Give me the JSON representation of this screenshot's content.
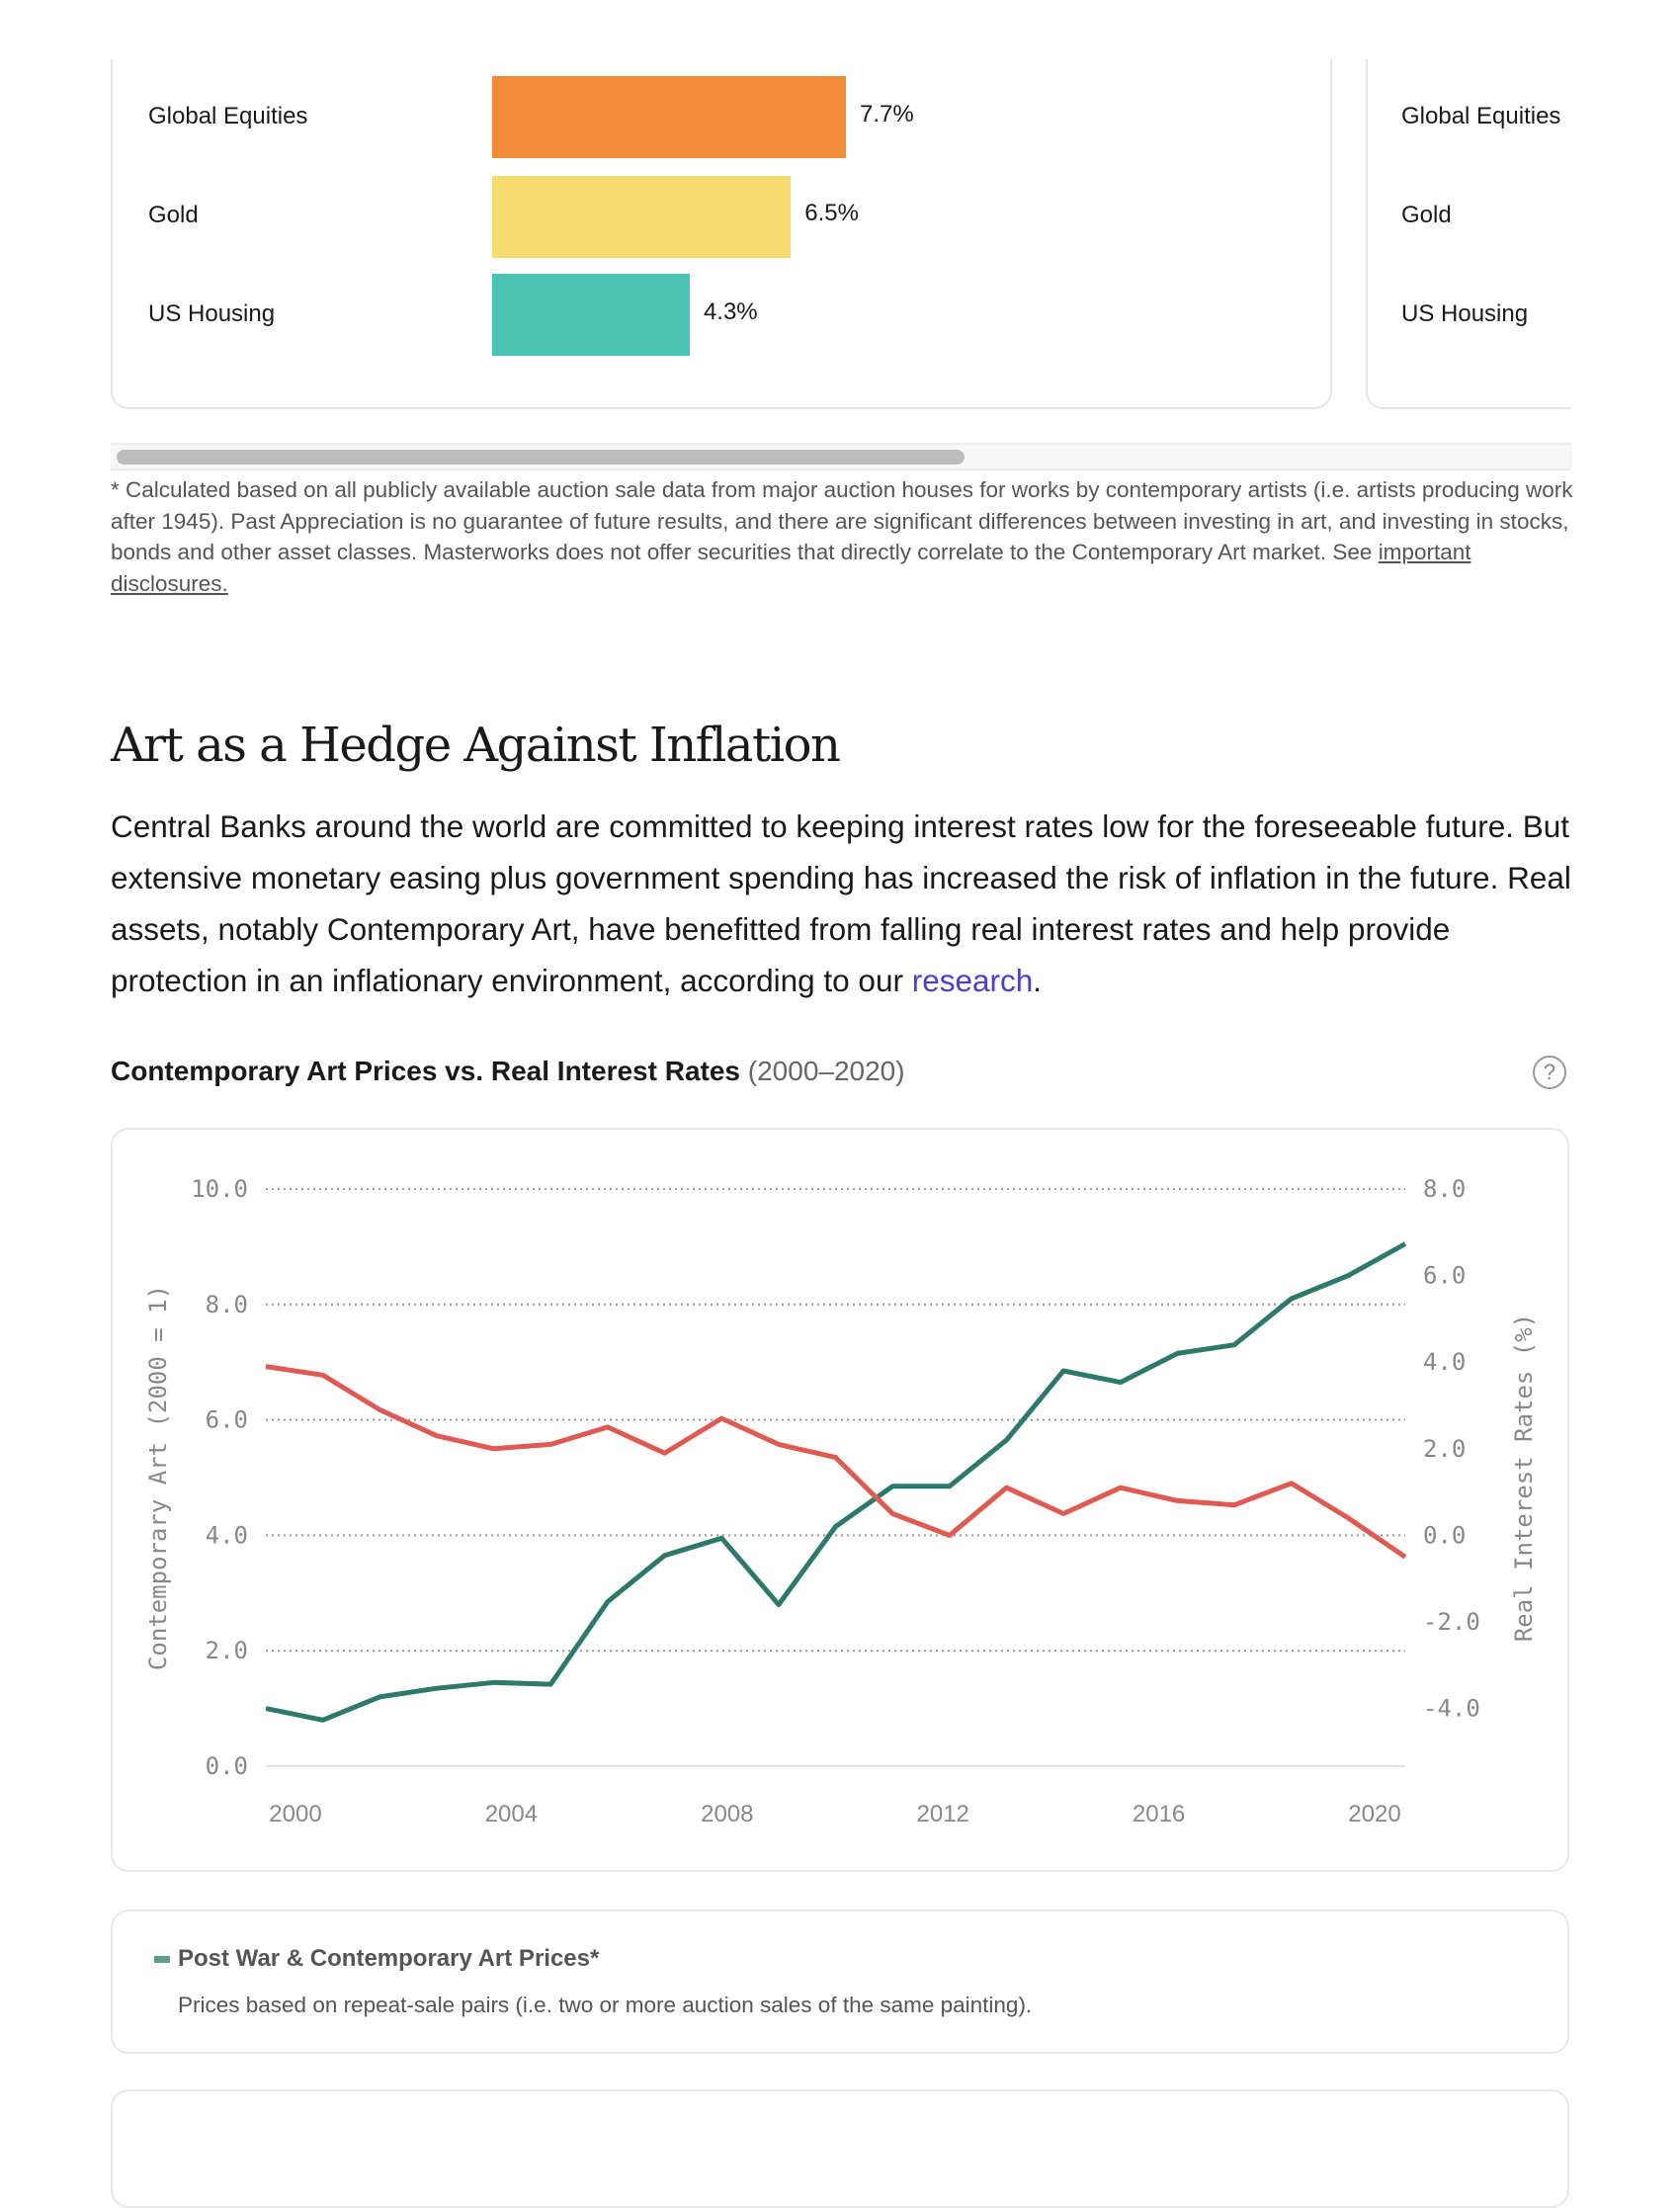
{
  "returns_chart": {
    "type": "bar",
    "categories": [
      "Global Equities",
      "Gold",
      "US Housing"
    ],
    "values": [
      7.7,
      6.5,
      4.3
    ],
    "value_labels": [
      "7.7%",
      "6.5%",
      "4.3%"
    ],
    "colors": [
      "#F08C35",
      "#F7DC6F",
      "#4CC4B5"
    ]
  },
  "second_card": {
    "labels": [
      "Global Equities",
      "Gold",
      "US Housing"
    ]
  },
  "footnote": {
    "text": "* Calculated based on all publicly available auction sale data from major auction houses for works by contemporary artists (i.e. artists producing work after 1945). Past Appreciation is no guarantee of future results, and there are significant differences between investing in art, and investing in stocks, bonds and other asset classes. Masterworks does not offer securities that directly correlate to the Contemporary Art market. See ",
    "link": "important disclosures."
  },
  "section": {
    "heading": "Art as a Hedge Against Inflation",
    "paragraph": "Central Banks around the world are committed to keeping interest rates low for the foreseeable future. But extensive monetary easing plus government spending has increased the risk of inflation in the future. Real assets, notably Contemporary Art, have benefitted from falling real interest rates and help provide protection in an inflationary environment, according to our ",
    "link": "research",
    "paragraph_end": "."
  },
  "chart_header": {
    "title": "Contemporary Art Prices vs. Real Interest Rates",
    "subtitle": "(2000–2020)",
    "help_icon": "question-circle-icon",
    "help_glyph": "?"
  },
  "chart_data": {
    "type": "line",
    "x": [
      2000,
      2001,
      2002,
      2003,
      2004,
      2005,
      2006,
      2007,
      2008,
      2009,
      2010,
      2011,
      2012,
      2013,
      2014,
      2015,
      2016,
      2017,
      2018,
      2019,
      2020
    ],
    "xticks": [
      "2000",
      "2004",
      "2008",
      "2012",
      "2016",
      "2020"
    ],
    "ylabel": "Contemporary Art (2000 = 1)",
    "ylabel_right": "Real Interest Rates (%)",
    "ylim": [
      0,
      10
    ],
    "ylim_right": [
      -5.333,
      8
    ],
    "yticks": [
      "0.0",
      "2.0",
      "4.0",
      "6.0",
      "8.0",
      "10.0"
    ],
    "yticks_right": [
      "-4.0",
      "-2.0",
      "0.0",
      "2.0",
      "4.0",
      "6.0",
      "8.0"
    ],
    "grid": true,
    "series": [
      {
        "axis": "left",
        "color": "#2E7A6A",
        "values": [
          1.0,
          0.8,
          1.2,
          1.35,
          1.45,
          1.42,
          2.85,
          3.65,
          3.95,
          2.8,
          4.15,
          4.85,
          4.85,
          5.65,
          6.85,
          6.65,
          7.15,
          7.3,
          8.1,
          8.5,
          9.05
        ]
      },
      {
        "axis": "right",
        "color": "#E05A52",
        "values": [
          3.9,
          3.7,
          2.9,
          2.3,
          2.0,
          2.1,
          2.5,
          1.9,
          2.7,
          2.1,
          1.8,
          0.5,
          0.0,
          1.1,
          0.5,
          1.1,
          0.8,
          0.7,
          1.2,
          0.4,
          -0.5
        ]
      }
    ]
  },
  "legend": {
    "title": "Post War & Contemporary Art Prices*",
    "description": "Prices based on repeat-sale pairs (i.e. two or more auction sales of the same painting).",
    "color": "#5E9E8E"
  }
}
